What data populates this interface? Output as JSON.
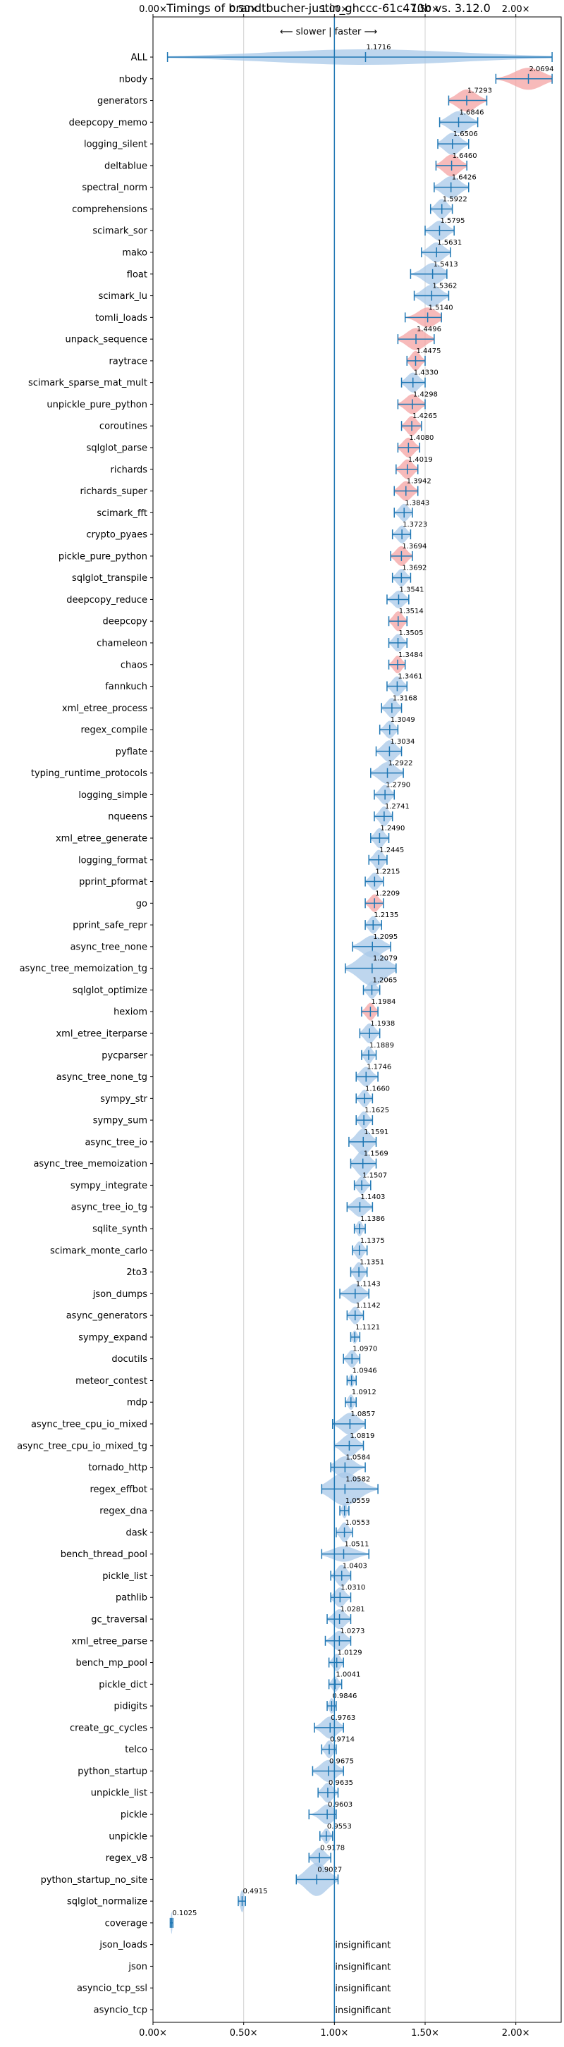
{
  "chart_data": {
    "type": "violin",
    "title": "Timings of brandtbucher-justin_ghccc-61c470b vs. 3.12.0",
    "direction_label": "⟵ slower | faster ⟶",
    "reference_line": 1.0,
    "xlim": [
      0.0,
      2.25
    ],
    "xticks": [
      {
        "value": 0.0,
        "label": "0.00×"
      },
      {
        "value": 0.5,
        "label": "0.50×"
      },
      {
        "value": 1.0,
        "label": "1.00×"
      },
      {
        "value": 1.5,
        "label": "1.50×"
      },
      {
        "value": 2.0,
        "label": "2.00×"
      }
    ],
    "grid": true,
    "colors": {
      "normal": "#a8c8e8",
      "highlight": "#f4a3a3",
      "line": "#1f77b4"
    },
    "insignificant_text": "insignificant",
    "benchmarks": [
      {
        "name": "ALL",
        "value": 1.1716,
        "label": "1.1716",
        "lo": 0.08,
        "hi": 2.2,
        "width": 0.35,
        "color": "normal"
      },
      {
        "name": "nbody",
        "value": 2.0694,
        "label": "2.0694",
        "lo": 1.89,
        "hi": 2.2,
        "width": 0.5,
        "color": "highlight"
      },
      {
        "name": "generators",
        "value": 1.7293,
        "label": "1.7293",
        "lo": 1.63,
        "hi": 1.84,
        "width": 0.5,
        "color": "highlight"
      },
      {
        "name": "deepcopy_memo",
        "value": 1.6846,
        "label": "1.6846",
        "lo": 1.58,
        "hi": 1.79,
        "width": 0.5,
        "color": "normal"
      },
      {
        "name": "logging_silent",
        "value": 1.6506,
        "label": "1.6506",
        "lo": 1.57,
        "hi": 1.74,
        "width": 0.5,
        "color": "normal"
      },
      {
        "name": "deltablue",
        "value": 1.646,
        "label": "1.6460",
        "lo": 1.56,
        "hi": 1.73,
        "width": 0.5,
        "color": "highlight"
      },
      {
        "name": "spectral_norm",
        "value": 1.6426,
        "label": "1.6426",
        "lo": 1.55,
        "hi": 1.74,
        "width": 0.5,
        "color": "normal"
      },
      {
        "name": "comprehensions",
        "value": 1.5922,
        "label": "1.5922",
        "lo": 1.53,
        "hi": 1.65,
        "width": 0.45,
        "color": "normal"
      },
      {
        "name": "scimark_sor",
        "value": 1.5795,
        "label": "1.5795",
        "lo": 1.5,
        "hi": 1.66,
        "width": 0.45,
        "color": "normal"
      },
      {
        "name": "mako",
        "value": 1.5631,
        "label": "1.5631",
        "lo": 1.48,
        "hi": 1.64,
        "width": 0.45,
        "color": "normal"
      },
      {
        "name": "float",
        "value": 1.5413,
        "label": "1.5413",
        "lo": 1.42,
        "hi": 1.62,
        "width": 0.5,
        "color": "normal"
      },
      {
        "name": "scimark_lu",
        "value": 1.5362,
        "label": "1.5362",
        "lo": 1.44,
        "hi": 1.63,
        "width": 0.5,
        "color": "normal"
      },
      {
        "name": "tomli_loads",
        "value": 1.514,
        "label": "1.5140",
        "lo": 1.39,
        "hi": 1.59,
        "width": 0.45,
        "color": "highlight"
      },
      {
        "name": "unpack_sequence",
        "value": 1.4496,
        "label": "1.4496",
        "lo": 1.35,
        "hi": 1.55,
        "width": 0.5,
        "color": "highlight"
      },
      {
        "name": "raytrace",
        "value": 1.4475,
        "label": "1.4475",
        "lo": 1.4,
        "hi": 1.5,
        "width": 0.45,
        "color": "highlight"
      },
      {
        "name": "scimark_sparse_mat_mult",
        "value": 1.433,
        "label": "1.4330",
        "lo": 1.37,
        "hi": 1.5,
        "width": 0.45,
        "color": "normal"
      },
      {
        "name": "unpickle_pure_python",
        "value": 1.4298,
        "label": "1.4298",
        "lo": 1.35,
        "hi": 1.5,
        "width": 0.45,
        "color": "highlight"
      },
      {
        "name": "coroutines",
        "value": 1.4265,
        "label": "1.4265",
        "lo": 1.37,
        "hi": 1.48,
        "width": 0.45,
        "color": "highlight"
      },
      {
        "name": "sqlglot_parse",
        "value": 1.408,
        "label": "1.4080",
        "lo": 1.35,
        "hi": 1.47,
        "width": 0.45,
        "color": "highlight"
      },
      {
        "name": "richards",
        "value": 1.4019,
        "label": "1.4019",
        "lo": 1.34,
        "hi": 1.46,
        "width": 0.45,
        "color": "highlight"
      },
      {
        "name": "richards_super",
        "value": 1.3942,
        "label": "1.3942",
        "lo": 1.33,
        "hi": 1.46,
        "width": 0.45,
        "color": "highlight"
      },
      {
        "name": "scimark_fft",
        "value": 1.3843,
        "label": "1.3843",
        "lo": 1.33,
        "hi": 1.43,
        "width": 0.4,
        "color": "normal"
      },
      {
        "name": "crypto_pyaes",
        "value": 1.3723,
        "label": "1.3723",
        "lo": 1.32,
        "hi": 1.42,
        "width": 0.4,
        "color": "normal"
      },
      {
        "name": "pickle_pure_python",
        "value": 1.3694,
        "label": "1.3694",
        "lo": 1.31,
        "hi": 1.43,
        "width": 0.45,
        "color": "highlight"
      },
      {
        "name": "sqlglot_transpile",
        "value": 1.3692,
        "label": "1.3692",
        "lo": 1.32,
        "hi": 1.42,
        "width": 0.4,
        "color": "normal"
      },
      {
        "name": "deepcopy_reduce",
        "value": 1.3541,
        "label": "1.3541",
        "lo": 1.29,
        "hi": 1.41,
        "width": 0.4,
        "color": "normal"
      },
      {
        "name": "deepcopy",
        "value": 1.3514,
        "label": "1.3514",
        "lo": 1.3,
        "hi": 1.4,
        "width": 0.45,
        "color": "highlight"
      },
      {
        "name": "chameleon",
        "value": 1.3505,
        "label": "1.3505",
        "lo": 1.3,
        "hi": 1.4,
        "width": 0.4,
        "color": "normal"
      },
      {
        "name": "chaos",
        "value": 1.3484,
        "label": "1.3484",
        "lo": 1.3,
        "hi": 1.39,
        "width": 0.4,
        "color": "highlight"
      },
      {
        "name": "fannkuch",
        "value": 1.3461,
        "label": "1.3461",
        "lo": 1.29,
        "hi": 1.4,
        "width": 0.45,
        "color": "normal"
      },
      {
        "name": "xml_etree_process",
        "value": 1.3168,
        "label": "1.3168",
        "lo": 1.26,
        "hi": 1.37,
        "width": 0.45,
        "color": "normal"
      },
      {
        "name": "regex_compile",
        "value": 1.3049,
        "label": "1.3049",
        "lo": 1.25,
        "hi": 1.35,
        "width": 0.4,
        "color": "normal"
      },
      {
        "name": "pyflate",
        "value": 1.3034,
        "label": "1.3034",
        "lo": 1.23,
        "hi": 1.37,
        "width": 0.5,
        "color": "normal"
      },
      {
        "name": "typing_runtime_protocols",
        "value": 1.2922,
        "label": "1.2922",
        "lo": 1.2,
        "hi": 1.38,
        "width": 0.5,
        "color": "normal"
      },
      {
        "name": "logging_simple",
        "value": 1.279,
        "label": "1.2790",
        "lo": 1.22,
        "hi": 1.33,
        "width": 0.45,
        "color": "normal"
      },
      {
        "name": "nqueens",
        "value": 1.2741,
        "label": "1.2741",
        "lo": 1.22,
        "hi": 1.32,
        "width": 0.45,
        "color": "normal"
      },
      {
        "name": "xml_etree_generate",
        "value": 1.249,
        "label": "1.2490",
        "lo": 1.2,
        "hi": 1.3,
        "width": 0.45,
        "color": "normal"
      },
      {
        "name": "logging_format",
        "value": 1.2445,
        "label": "1.2445",
        "lo": 1.19,
        "hi": 1.29,
        "width": 0.45,
        "color": "normal"
      },
      {
        "name": "pprint_pformat",
        "value": 1.2215,
        "label": "1.2215",
        "lo": 1.17,
        "hi": 1.27,
        "width": 0.4,
        "color": "normal"
      },
      {
        "name": "go",
        "value": 1.2209,
        "label": "1.2209",
        "lo": 1.17,
        "hi": 1.27,
        "width": 0.4,
        "color": "highlight"
      },
      {
        "name": "pprint_safe_repr",
        "value": 1.2135,
        "label": "1.2135",
        "lo": 1.17,
        "hi": 1.26,
        "width": 0.4,
        "color": "normal"
      },
      {
        "name": "async_tree_none",
        "value": 1.2095,
        "label": "1.2095",
        "lo": 1.1,
        "hi": 1.31,
        "width": 0.5,
        "color": "normal"
      },
      {
        "name": "async_tree_memoization_tg",
        "value": 1.2079,
        "label": "1.2079",
        "lo": 1.06,
        "hi": 1.34,
        "width": 0.8,
        "color": "normal"
      },
      {
        "name": "sqlglot_optimize",
        "value": 1.2065,
        "label": "1.2065",
        "lo": 1.16,
        "hi": 1.25,
        "width": 0.4,
        "color": "normal"
      },
      {
        "name": "hexiom",
        "value": 1.1984,
        "label": "1.1984",
        "lo": 1.15,
        "hi": 1.24,
        "width": 0.4,
        "color": "highlight"
      },
      {
        "name": "xml_etree_iterparse",
        "value": 1.1938,
        "label": "1.1938",
        "lo": 1.14,
        "hi": 1.25,
        "width": 0.45,
        "color": "normal"
      },
      {
        "name": "pycparser",
        "value": 1.1889,
        "label": "1.1889",
        "lo": 1.15,
        "hi": 1.23,
        "width": 0.4,
        "color": "normal"
      },
      {
        "name": "async_tree_none_tg",
        "value": 1.1746,
        "label": "1.1746",
        "lo": 1.12,
        "hi": 1.24,
        "width": 0.45,
        "color": "normal"
      },
      {
        "name": "sympy_str",
        "value": 1.166,
        "label": "1.1660",
        "lo": 1.12,
        "hi": 1.21,
        "width": 0.4,
        "color": "normal"
      },
      {
        "name": "sympy_sum",
        "value": 1.1625,
        "label": "1.1625",
        "lo": 1.12,
        "hi": 1.21,
        "width": 0.4,
        "color": "normal"
      },
      {
        "name": "async_tree_io",
        "value": 1.1591,
        "label": "1.1591",
        "lo": 1.08,
        "hi": 1.23,
        "width": 0.6,
        "color": "normal"
      },
      {
        "name": "async_tree_memoization",
        "value": 1.1569,
        "label": "1.1569",
        "lo": 1.09,
        "hi": 1.23,
        "width": 0.6,
        "color": "normal"
      },
      {
        "name": "sympy_integrate",
        "value": 1.1507,
        "label": "1.1507",
        "lo": 1.11,
        "hi": 1.2,
        "width": 0.4,
        "color": "normal"
      },
      {
        "name": "async_tree_io_tg",
        "value": 1.1403,
        "label": "1.1403",
        "lo": 1.07,
        "hi": 1.21,
        "width": 0.45,
        "color": "normal"
      },
      {
        "name": "sqlite_synth",
        "value": 1.1386,
        "label": "1.1386",
        "lo": 1.11,
        "hi": 1.17,
        "width": 0.35,
        "color": "normal"
      },
      {
        "name": "scimark_monte_carlo",
        "value": 1.1375,
        "label": "1.1375",
        "lo": 1.1,
        "hi": 1.18,
        "width": 0.4,
        "color": "normal"
      },
      {
        "name": "2to3",
        "value": 1.1351,
        "label": "1.1351",
        "lo": 1.09,
        "hi": 1.18,
        "width": 0.45,
        "color": "normal"
      },
      {
        "name": "json_dumps",
        "value": 1.1143,
        "label": "1.1143",
        "lo": 1.03,
        "hi": 1.19,
        "width": 0.45,
        "color": "normal"
      },
      {
        "name": "async_generators",
        "value": 1.1142,
        "label": "1.1142",
        "lo": 1.07,
        "hi": 1.16,
        "width": 0.4,
        "color": "normal"
      },
      {
        "name": "sympy_expand",
        "value": 1.1121,
        "label": "1.1121",
        "lo": 1.09,
        "hi": 1.14,
        "width": 0.3,
        "color": "normal"
      },
      {
        "name": "docutils",
        "value": 1.097,
        "label": "1.0970",
        "lo": 1.05,
        "hi": 1.14,
        "width": 0.4,
        "color": "normal"
      },
      {
        "name": "meteor_contest",
        "value": 1.0946,
        "label": "1.0946",
        "lo": 1.07,
        "hi": 1.12,
        "width": 0.3,
        "color": "normal"
      },
      {
        "name": "mdp",
        "value": 1.0912,
        "label": "1.0912",
        "lo": 1.06,
        "hi": 1.12,
        "width": 0.35,
        "color": "normal"
      },
      {
        "name": "async_tree_cpu_io_mixed",
        "value": 1.0857,
        "label": "1.0857",
        "lo": 0.99,
        "hi": 1.17,
        "width": 0.5,
        "color": "normal"
      },
      {
        "name": "async_tree_cpu_io_mixed_tg",
        "value": 1.0819,
        "label": "1.0819",
        "lo": 1.0,
        "hi": 1.16,
        "width": 0.5,
        "color": "normal"
      },
      {
        "name": "tornado_http",
        "value": 1.0584,
        "label": "1.0584",
        "lo": 0.98,
        "hi": 1.17,
        "width": 0.5,
        "color": "normal"
      },
      {
        "name": "regex_effbot",
        "value": 1.0582,
        "label": "1.0582",
        "lo": 0.93,
        "hi": 1.24,
        "width": 0.75,
        "color": "normal"
      },
      {
        "name": "regex_dna",
        "value": 1.0559,
        "label": "1.0559",
        "lo": 1.03,
        "hi": 1.08,
        "width": 0.35,
        "color": "normal"
      },
      {
        "name": "dask",
        "value": 1.0553,
        "label": "1.0553",
        "lo": 1.01,
        "hi": 1.1,
        "width": 0.45,
        "color": "normal"
      },
      {
        "name": "bench_thread_pool",
        "value": 1.0511,
        "label": "1.0511",
        "lo": 0.93,
        "hi": 1.19,
        "width": 0.35,
        "color": "normal"
      },
      {
        "name": "pickle_list",
        "value": 1.0403,
        "label": "1.0403",
        "lo": 0.98,
        "hi": 1.09,
        "width": 0.5,
        "color": "normal"
      },
      {
        "name": "pathlib",
        "value": 1.031,
        "label": "1.0310",
        "lo": 0.98,
        "hi": 1.09,
        "width": 0.45,
        "color": "normal"
      },
      {
        "name": "gc_traversal",
        "value": 1.0281,
        "label": "1.0281",
        "lo": 0.96,
        "hi": 1.09,
        "width": 0.45,
        "color": "normal"
      },
      {
        "name": "xml_etree_parse",
        "value": 1.0273,
        "label": "1.0273",
        "lo": 0.95,
        "hi": 1.09,
        "width": 0.45,
        "color": "normal"
      },
      {
        "name": "bench_mp_pool",
        "value": 1.0129,
        "label": "1.0129",
        "lo": 0.97,
        "hi": 1.05,
        "width": 0.4,
        "color": "normal"
      },
      {
        "name": "pickle_dict",
        "value": 1.0041,
        "label": "1.0041",
        "lo": 0.97,
        "hi": 1.04,
        "width": 0.35,
        "color": "normal"
      },
      {
        "name": "pidigits",
        "value": 0.9846,
        "label": "0.9846",
        "lo": 0.96,
        "hi": 1.01,
        "width": 0.35,
        "color": "normal"
      },
      {
        "name": "create_gc_cycles",
        "value": 0.9763,
        "label": "0.9763",
        "lo": 0.89,
        "hi": 1.05,
        "width": 0.5,
        "color": "normal"
      },
      {
        "name": "telco",
        "value": 0.9714,
        "label": "0.9714",
        "lo": 0.93,
        "hi": 1.01,
        "width": 0.4,
        "color": "normal"
      },
      {
        "name": "python_startup",
        "value": 0.9675,
        "label": "0.9675",
        "lo": 0.88,
        "hi": 1.05,
        "width": 0.5,
        "color": "normal"
      },
      {
        "name": "unpickle_list",
        "value": 0.9635,
        "label": "0.9635",
        "lo": 0.91,
        "hi": 1.02,
        "width": 0.45,
        "color": "normal"
      },
      {
        "name": "pickle",
        "value": 0.9603,
        "label": "0.9603",
        "lo": 0.86,
        "hi": 1.01,
        "width": 0.45,
        "color": "normal"
      },
      {
        "name": "unpickle",
        "value": 0.9553,
        "label": "0.9553",
        "lo": 0.92,
        "hi": 0.99,
        "width": 0.35,
        "color": "normal"
      },
      {
        "name": "regex_v8",
        "value": 0.9178,
        "label": "0.9178",
        "lo": 0.86,
        "hi": 0.98,
        "width": 0.45,
        "color": "normal"
      },
      {
        "name": "python_startup_no_site",
        "value": 0.9027,
        "label": "0.9027",
        "lo": 0.79,
        "hi": 1.02,
        "width": 0.75,
        "color": "normal"
      },
      {
        "name": "sqlglot_normalize",
        "value": 0.4915,
        "label": "0.4915",
        "lo": 0.47,
        "hi": 0.51,
        "width": 0.5,
        "color": "normal"
      },
      {
        "name": "coverage",
        "value": 0.1025,
        "label": "0.1025",
        "lo": 0.095,
        "hi": 0.11,
        "width": 0.5,
        "color": "normal"
      },
      {
        "name": "json_loads",
        "insignificant": true
      },
      {
        "name": "json",
        "insignificant": true
      },
      {
        "name": "asyncio_tcp_ssl",
        "insignificant": true
      },
      {
        "name": "asyncio_tcp",
        "insignificant": true
      }
    ]
  }
}
